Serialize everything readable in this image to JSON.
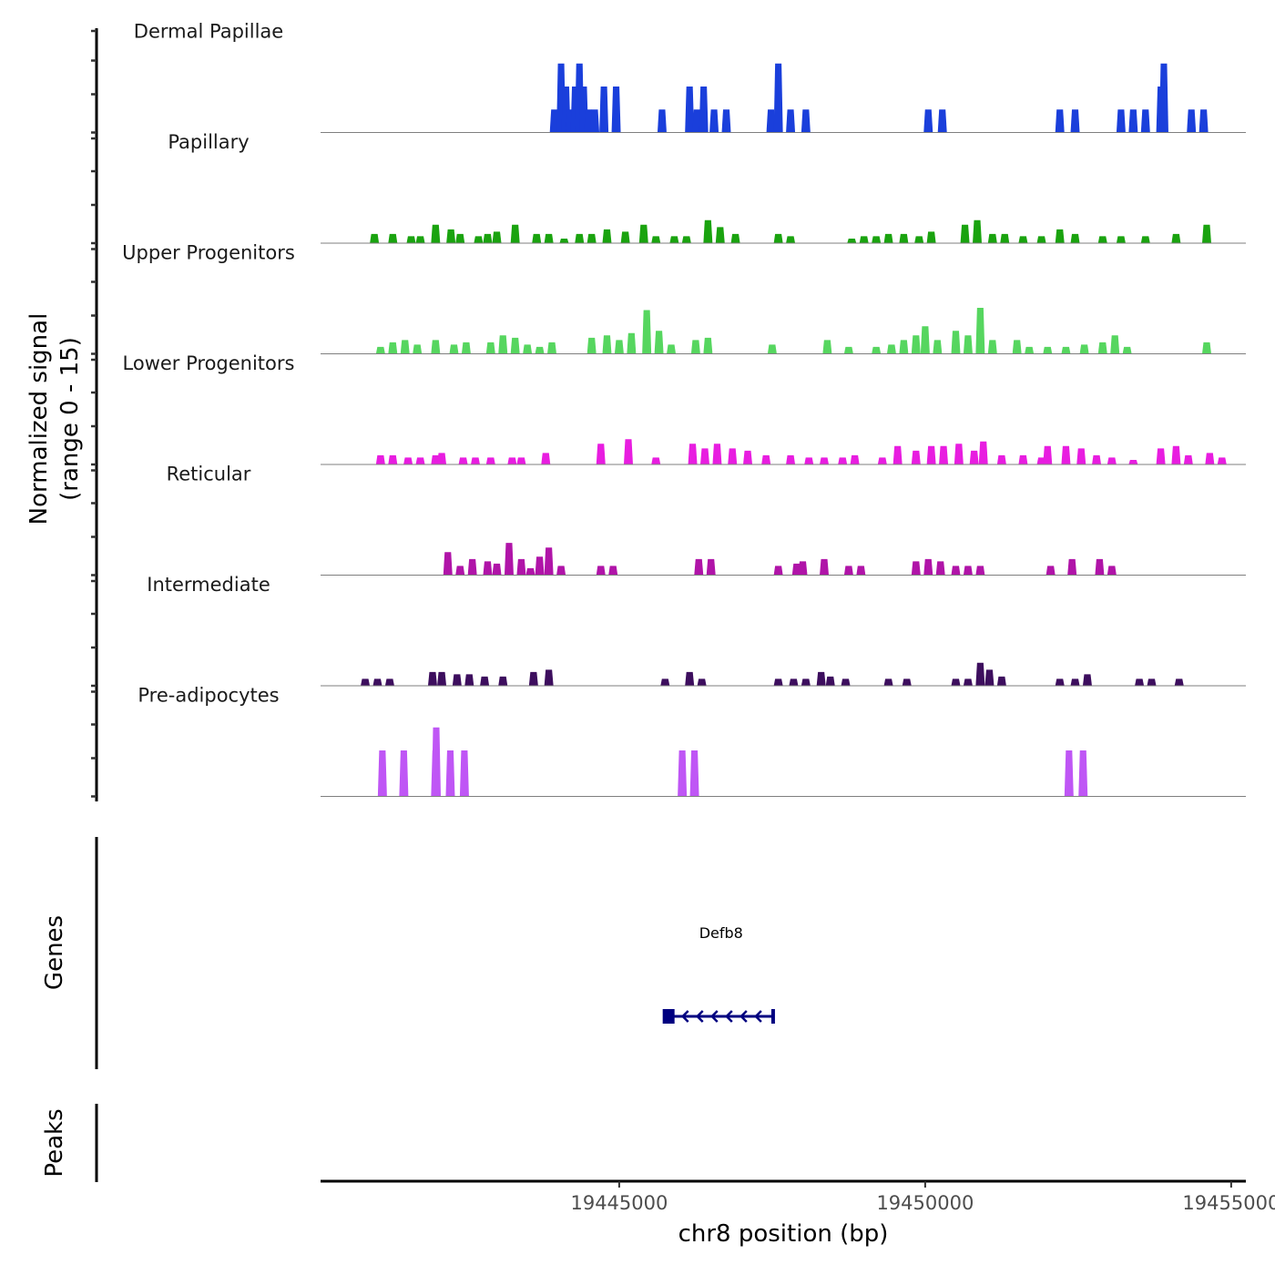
{
  "chart_data": {
    "type": "area",
    "title": "",
    "ylabel": "Normalized signal\n(range 0 - 15)",
    "ylabel_lines": [
      "Normalized signal",
      "(range 0 - 15)"
    ],
    "ylim": [
      0,
      15
    ],
    "xlabel": "chr8 position (bp)",
    "xlim": [
      19440120,
      19455240
    ],
    "x_ticks": [
      19445000,
      19450000,
      19455000
    ],
    "x_tick_labels": [
      "19445000",
      "19450000",
      "19455000"
    ],
    "tracks": [
      {
        "name": "Dermal Papillae",
        "color": "#1a3fdb",
        "peaks": [
          [
            19443940,
            5
          ],
          [
            19444050,
            15
          ],
          [
            19444130,
            10
          ],
          [
            19444200,
            5
          ],
          [
            19444280,
            10
          ],
          [
            19444350,
            15
          ],
          [
            19444420,
            10
          ],
          [
            19444500,
            5
          ],
          [
            19444600,
            5
          ],
          [
            19444750,
            10
          ],
          [
            19444950,
            10
          ],
          [
            19445700,
            5
          ],
          [
            19446150,
            10
          ],
          [
            19446270,
            5
          ],
          [
            19446380,
            10
          ],
          [
            19446550,
            5
          ],
          [
            19446750,
            5
          ],
          [
            19447480,
            5
          ],
          [
            19447600,
            15
          ],
          [
            19447800,
            5
          ],
          [
            19448050,
            5
          ],
          [
            19450050,
            5
          ],
          [
            19450280,
            5
          ],
          [
            19452200,
            5
          ],
          [
            19452450,
            5
          ],
          [
            19453200,
            5
          ],
          [
            19453400,
            5
          ],
          [
            19453600,
            5
          ],
          [
            19453850,
            10
          ],
          [
            19453900,
            15
          ],
          [
            19454350,
            5
          ],
          [
            19454550,
            5
          ]
        ]
      },
      {
        "name": "Papillary",
        "color": "#1aa30f",
        "peaks": [
          [
            19441000,
            2
          ],
          [
            19441300,
            2
          ],
          [
            19441600,
            1.5
          ],
          [
            19441750,
            1.5
          ],
          [
            19442000,
            4
          ],
          [
            19442250,
            3
          ],
          [
            19442400,
            2
          ],
          [
            19442700,
            1.5
          ],
          [
            19442850,
            2
          ],
          [
            19443000,
            2.5
          ],
          [
            19443300,
            4
          ],
          [
            19443650,
            2
          ],
          [
            19443850,
            2
          ],
          [
            19444100,
            1
          ],
          [
            19444350,
            2
          ],
          [
            19444550,
            2
          ],
          [
            19444800,
            3
          ],
          [
            19445100,
            2.5
          ],
          [
            19445400,
            4
          ],
          [
            19445600,
            1.5
          ],
          [
            19445900,
            1.5
          ],
          [
            19446100,
            1.5
          ],
          [
            19446450,
            5
          ],
          [
            19446650,
            3.5
          ],
          [
            19446900,
            2
          ],
          [
            19447600,
            2
          ],
          [
            19447800,
            1.5
          ],
          [
            19448800,
            1
          ],
          [
            19449000,
            1.5
          ],
          [
            19449200,
            1.5
          ],
          [
            19449400,
            2
          ],
          [
            19449650,
            2
          ],
          [
            19449900,
            1.5
          ],
          [
            19450100,
            2.5
          ],
          [
            19450650,
            4
          ],
          [
            19450850,
            5
          ],
          [
            19451100,
            2
          ],
          [
            19451300,
            2
          ],
          [
            19451600,
            1.5
          ],
          [
            19451900,
            1.5
          ],
          [
            19452200,
            3
          ],
          [
            19452450,
            2
          ],
          [
            19452900,
            1.5
          ],
          [
            19453200,
            1.5
          ],
          [
            19453600,
            1.5
          ],
          [
            19454100,
            2
          ],
          [
            19454600,
            4
          ]
        ]
      },
      {
        "name": "Upper Progenitors",
        "color": "#56d65f",
        "peaks": [
          [
            19441100,
            1.5
          ],
          [
            19441300,
            2.5
          ],
          [
            19441500,
            3
          ],
          [
            19441700,
            2
          ],
          [
            19442000,
            3
          ],
          [
            19442300,
            2
          ],
          [
            19442500,
            2.5
          ],
          [
            19442900,
            2.5
          ],
          [
            19443100,
            4
          ],
          [
            19443300,
            3.5
          ],
          [
            19443500,
            2
          ],
          [
            19443700,
            1.5
          ],
          [
            19443900,
            2.5
          ],
          [
            19444550,
            3.5
          ],
          [
            19444800,
            4
          ],
          [
            19445000,
            3
          ],
          [
            19445200,
            4.5
          ],
          [
            19445450,
            9.5
          ],
          [
            19445650,
            5
          ],
          [
            19445850,
            2
          ],
          [
            19446250,
            3
          ],
          [
            19446450,
            3.5
          ],
          [
            19447500,
            2
          ],
          [
            19448400,
            3
          ],
          [
            19448750,
            1.5
          ],
          [
            19449200,
            1.5
          ],
          [
            19449450,
            2
          ],
          [
            19449650,
            3
          ],
          [
            19449850,
            4
          ],
          [
            19450000,
            6
          ],
          [
            19450200,
            3
          ],
          [
            19450500,
            5
          ],
          [
            19450700,
            4
          ],
          [
            19450900,
            10
          ],
          [
            19451100,
            3
          ],
          [
            19451500,
            3
          ],
          [
            19451700,
            1.5
          ],
          [
            19452000,
            1.5
          ],
          [
            19452300,
            1.5
          ],
          [
            19452600,
            2
          ],
          [
            19452900,
            2.5
          ],
          [
            19453100,
            4
          ],
          [
            19453300,
            1.5
          ],
          [
            19454600,
            2.5
          ]
        ]
      },
      {
        "name": "Lower Progenitors",
        "color": "#e81de0",
        "peaks": [
          [
            19441100,
            2
          ],
          [
            19441300,
            2
          ],
          [
            19441550,
            1.5
          ],
          [
            19441750,
            1.5
          ],
          [
            19442000,
            2
          ],
          [
            19442100,
            2.5
          ],
          [
            19442450,
            1.5
          ],
          [
            19442650,
            1.5
          ],
          [
            19442900,
            1.5
          ],
          [
            19443250,
            1.5
          ],
          [
            19443400,
            1.5
          ],
          [
            19443800,
            2.5
          ],
          [
            19444700,
            4.5
          ],
          [
            19445150,
            5.5
          ],
          [
            19445600,
            1.5
          ],
          [
            19446200,
            4.5
          ],
          [
            19446400,
            3.5
          ],
          [
            19446600,
            4.5
          ],
          [
            19446850,
            3.5
          ],
          [
            19447100,
            3
          ],
          [
            19447400,
            2
          ],
          [
            19447800,
            2
          ],
          [
            19448100,
            1.5
          ],
          [
            19448350,
            1.5
          ],
          [
            19448650,
            1.5
          ],
          [
            19448850,
            2
          ],
          [
            19449300,
            1.5
          ],
          [
            19449550,
            4
          ],
          [
            19449850,
            3
          ],
          [
            19450100,
            4
          ],
          [
            19450300,
            4
          ],
          [
            19450550,
            4.5
          ],
          [
            19450800,
            3
          ],
          [
            19450950,
            5
          ],
          [
            19451250,
            2
          ],
          [
            19451600,
            2
          ],
          [
            19451900,
            1.5
          ],
          [
            19452000,
            4
          ],
          [
            19452300,
            4
          ],
          [
            19452550,
            3.5
          ],
          [
            19452800,
            2
          ],
          [
            19453050,
            1.5
          ],
          [
            19453400,
            1
          ],
          [
            19453850,
            3.5
          ],
          [
            19454100,
            4
          ],
          [
            19454300,
            2
          ],
          [
            19454650,
            2.5
          ],
          [
            19454850,
            1.5
          ]
        ]
      },
      {
        "name": "Reticular",
        "color": "#b014a8",
        "peaks": [
          [
            19442200,
            5
          ],
          [
            19442400,
            2
          ],
          [
            19442600,
            3.5
          ],
          [
            19442850,
            3
          ],
          [
            19443000,
            2.5
          ],
          [
            19443200,
            7
          ],
          [
            19443400,
            3.5
          ],
          [
            19443550,
            1.5
          ],
          [
            19443700,
            4
          ],
          [
            19443850,
            6
          ],
          [
            19444050,
            2
          ],
          [
            19444700,
            2
          ],
          [
            19444900,
            2
          ],
          [
            19446300,
            3.5
          ],
          [
            19446500,
            3.5
          ],
          [
            19447600,
            2
          ],
          [
            19447900,
            2.5
          ],
          [
            19448000,
            3
          ],
          [
            19448350,
            3.5
          ],
          [
            19448750,
            2
          ],
          [
            19448950,
            2
          ],
          [
            19449850,
            3
          ],
          [
            19450050,
            3.5
          ],
          [
            19450250,
            3
          ],
          [
            19450500,
            2
          ],
          [
            19450700,
            2
          ],
          [
            19450900,
            2
          ],
          [
            19452050,
            2
          ],
          [
            19452400,
            3.5
          ],
          [
            19452850,
            3.5
          ],
          [
            19453050,
            2
          ]
        ]
      },
      {
        "name": "Intermediate",
        "color": "#3d0e5e",
        "peaks": [
          [
            19440850,
            1.5
          ],
          [
            19441050,
            1.5
          ],
          [
            19441250,
            1.5
          ],
          [
            19441950,
            3
          ],
          [
            19442100,
            3
          ],
          [
            19442350,
            2.5
          ],
          [
            19442550,
            2.5
          ],
          [
            19442800,
            2
          ],
          [
            19443100,
            2
          ],
          [
            19443600,
            3
          ],
          [
            19443850,
            3.5
          ],
          [
            19445750,
            1.5
          ],
          [
            19446150,
            3
          ],
          [
            19446350,
            1.5
          ],
          [
            19447600,
            1.5
          ],
          [
            19447850,
            1.5
          ],
          [
            19448050,
            1.5
          ],
          [
            19448300,
            3
          ],
          [
            19448450,
            2
          ],
          [
            19448700,
            1.5
          ],
          [
            19449400,
            1.5
          ],
          [
            19449700,
            1.5
          ],
          [
            19450500,
            1.5
          ],
          [
            19450700,
            1.5
          ],
          [
            19450900,
            5
          ],
          [
            19451050,
            3.5
          ],
          [
            19451250,
            2
          ],
          [
            19452200,
            1.5
          ],
          [
            19452450,
            1.5
          ],
          [
            19452650,
            2.5
          ],
          [
            19453500,
            1.5
          ],
          [
            19453700,
            1.5
          ],
          [
            19454150,
            1.5
          ]
        ]
      },
      {
        "name": "Pre-adipocytes",
        "color": "#bf56f5",
        "peaks": [
          [
            19441130,
            10
          ],
          [
            19441480,
            10
          ],
          [
            19442000,
            10
          ],
          [
            19442010,
            15
          ],
          [
            19442240,
            10
          ],
          [
            19442470,
            10
          ],
          [
            19446030,
            10
          ],
          [
            19446230,
            10
          ],
          [
            19452350,
            10
          ],
          [
            19452580,
            10
          ]
        ]
      }
    ],
    "genes_track": {
      "label": "Genes",
      "genes": [
        {
          "name": "Defb8",
          "start": 19445800,
          "end": 19447530,
          "strand": "-",
          "color": "#000080"
        }
      ]
    },
    "peaks_track": {
      "label": "Peaks",
      "regions": []
    }
  }
}
